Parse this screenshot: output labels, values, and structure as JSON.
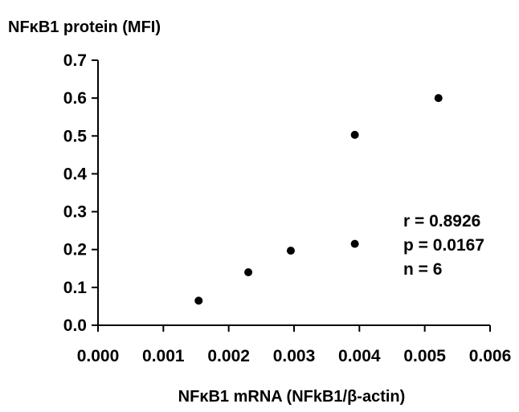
{
  "chart_data": {
    "type": "scatter",
    "ylabel": "NFκB1 protein (MFI)",
    "xlabel": "NFκB1 mRNA (NFkB1/β-actin)",
    "xlim": [
      0,
      0.006
    ],
    "ylim": [
      0,
      0.7
    ],
    "x_ticks": [
      "0.000",
      "0.001",
      "0.002",
      "0.003",
      "0.004",
      "0.005",
      "0.006"
    ],
    "y_ticks": [
      "0.0",
      "0.1",
      "0.2",
      "0.3",
      "0.4",
      "0.5",
      "0.6",
      "0.7"
    ],
    "points": [
      {
        "x": 0.00154,
        "y": 0.065
      },
      {
        "x": 0.0023,
        "y": 0.14
      },
      {
        "x": 0.00295,
        "y": 0.197
      },
      {
        "x": 0.00393,
        "y": 0.215
      },
      {
        "x": 0.00393,
        "y": 0.503
      },
      {
        "x": 0.00521,
        "y": 0.6
      }
    ],
    "annotations": [
      "r = 0.8926",
      "p = 0.0167",
      "n = 6"
    ],
    "grid": false,
    "marker_color": "#000000"
  }
}
